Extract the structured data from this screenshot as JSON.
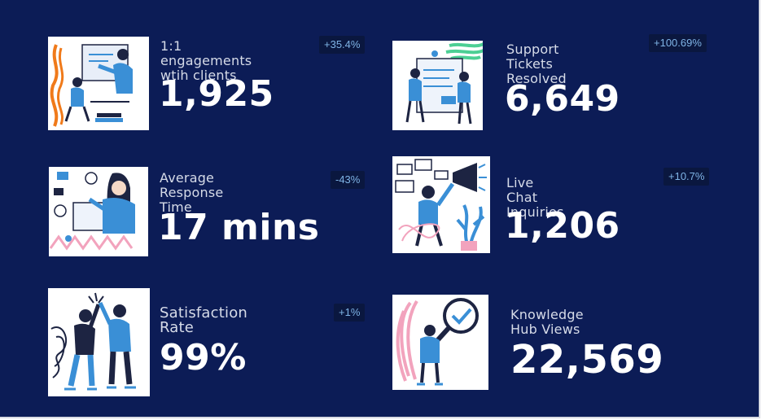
{
  "stats": [
    {
      "label": "1:1 engagements\nwtih clients",
      "value": "1,925",
      "change": "+35.4%"
    },
    {
      "label": "Support Tickets\nResolved",
      "value": "6,649",
      "change": "+100.69%"
    },
    {
      "label": "Average Response\nTime",
      "value": "17 mins",
      "change": "-43%"
    },
    {
      "label": "Live Chat Inquiries",
      "value": "1,206",
      "change": "+10.7%"
    },
    {
      "label": "Satisfaction Rate",
      "value": "99%",
      "change": "+1%"
    },
    {
      "label": "Knowledge Hub Views",
      "value": "22,569",
      "change": ""
    }
  ],
  "icons": [
    "meeting-illustration-icon",
    "support-tickets-illustration-icon",
    "response-time-illustration-icon",
    "live-chat-illustration-icon",
    "high-five-illustration-icon",
    "magnifier-check-illustration-icon"
  ],
  "colors": {
    "background": "#0c1c56",
    "badge_bg": "#0a173f",
    "badge_text": "#7fb4e6",
    "label_text": "#d6dbe8",
    "value_text": "#ffffff",
    "illustration_blue": "#3a8fd6",
    "illustration_dark": "#1d2442",
    "accent_orange": "#f07a1a",
    "accent_green": "#4ccf94",
    "accent_pink": "#f2a3bd"
  }
}
